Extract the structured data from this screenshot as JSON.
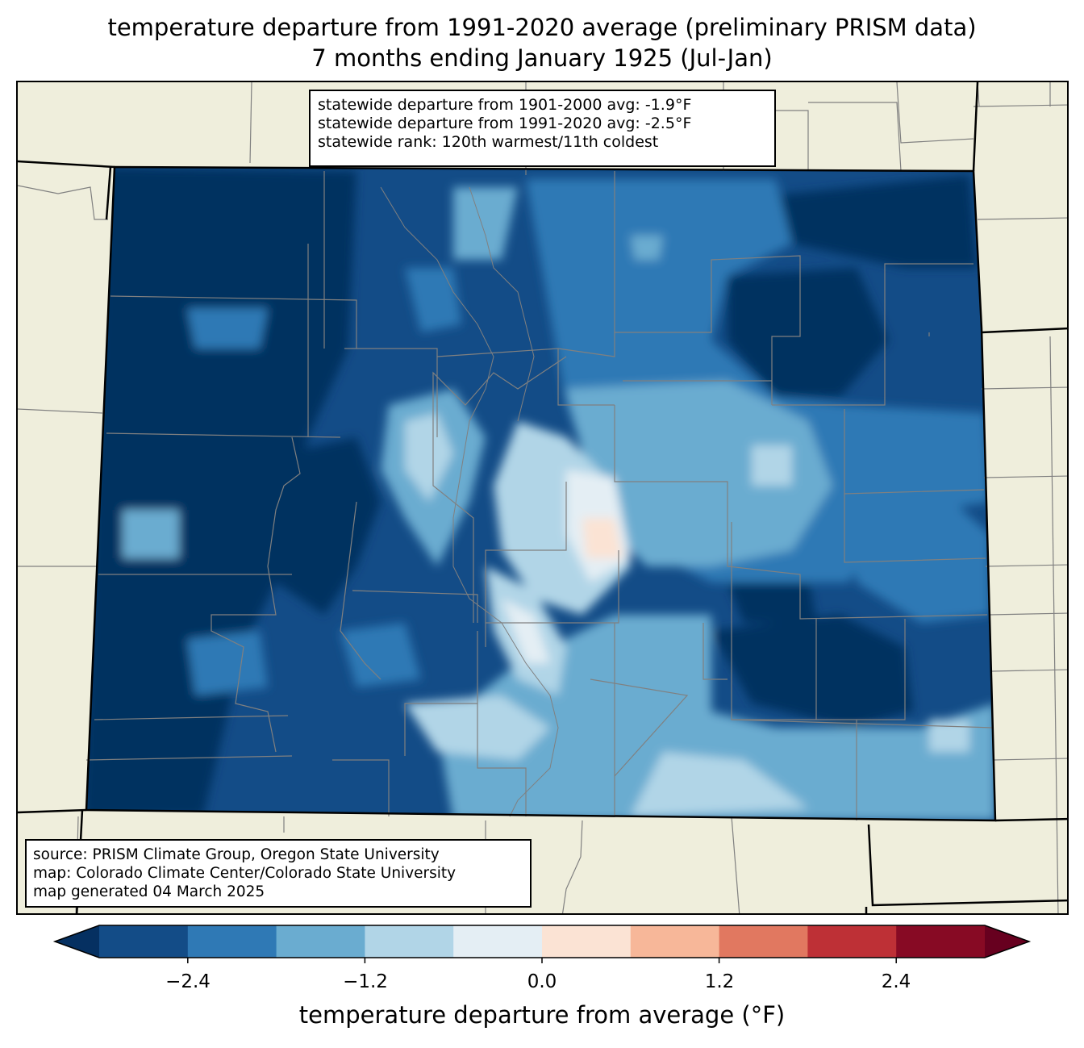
{
  "title": {
    "line1": "temperature departure from 1991-2020 average (preliminary PRISM data)",
    "line2": "7 months ending January 1925 (Jul-Jan)"
  },
  "stats_box": {
    "line1": "statewide departure from 1901-2000 avg: -1.9°F",
    "line2": "statewide departure from 1991-2020 avg: -2.5°F",
    "line3": "statewide rank: 120th warmest/11th coldest"
  },
  "source_box": {
    "line1": "source: PRISM Climate Group, Oregon State University",
    "line2": "map: Colorado Climate Center/Colorado State University",
    "line3": "map generated 04 March 2025"
  },
  "colorbar": {
    "label": "temperature departure from average (°F)",
    "ticks": [
      "−2.4",
      "−1.2",
      "0.0",
      "1.2",
      "2.4"
    ],
    "tick_values": [
      -2.4,
      -1.2,
      0.0,
      1.2,
      2.4
    ],
    "bounds": [
      -3.0,
      -2.4,
      -1.8,
      -1.2,
      -0.6,
      0.0,
      0.6,
      1.2,
      1.8,
      2.4,
      3.0
    ],
    "under_color": "#053061",
    "over_color": "#67001f",
    "colors": [
      "#134c87",
      "#2f79b5",
      "#6aacd0",
      "#b1d5e7",
      "#e4eef4",
      "#fbe3d4",
      "#f7b799",
      "#e17860",
      "#be3036",
      "#870a24"
    ]
  },
  "map_colors": {
    "land": "#efeedc",
    "county_lines": "#808080",
    "state_lines": "#000000"
  }
}
